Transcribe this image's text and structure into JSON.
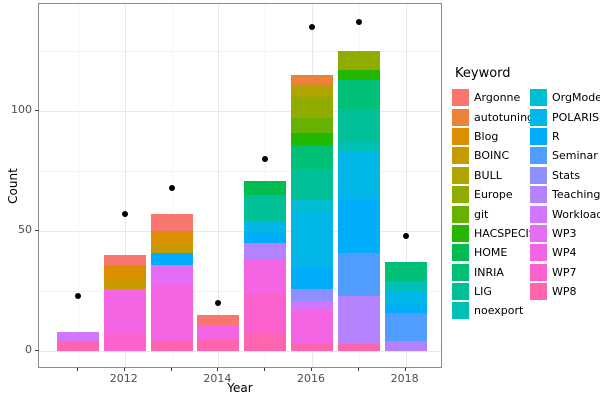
{
  "figure": {
    "y_axis_title": "Count",
    "x_axis_title": "Year",
    "legend_title": "Keyword"
  },
  "colors": {
    "panel_border": "#8c8c8c",
    "grid_major": "#e8e8e8",
    "grid_minor": "#f4f4f4",
    "tick": "#333333",
    "tick_label": "#4d4d4d",
    "point": "#000000"
  },
  "chart_data": {
    "type": "bar",
    "stacked": true,
    "title": "",
    "xlabel": "Year",
    "ylabel": "Count",
    "legend_title": "Keyword",
    "legend_position": "right",
    "grid": true,
    "x": [
      2011,
      2012,
      2013,
      2014,
      2015,
      2016,
      2017,
      2018
    ],
    "x_labeled_ticks": [
      "2012",
      "2014",
      "2016",
      "2018"
    ],
    "ylim": [
      0,
      145
    ],
    "y_major_ticks": [
      0,
      50,
      100
    ],
    "y_minor_ticks": [
      25,
      75,
      125
    ],
    "bar_totals": [
      8,
      40,
      57,
      15,
      71,
      115,
      125,
      37
    ],
    "series": [
      {
        "name": "Argonne",
        "color": "#F8766D",
        "values": [
          0,
          4,
          7,
          4,
          0,
          0,
          0,
          0
        ]
      },
      {
        "name": "autotuning",
        "color": "#EC8239",
        "values": [
          0,
          0,
          0,
          0,
          0,
          4,
          0,
          0
        ]
      },
      {
        "name": "Blog",
        "color": "#DB8E00",
        "values": [
          0,
          6,
          5,
          0,
          0,
          0,
          0,
          0
        ]
      },
      {
        "name": "BOINC",
        "color": "#C79A00",
        "values": [
          0,
          4,
          4,
          0,
          0,
          0,
          0,
          0
        ]
      },
      {
        "name": "BULL",
        "color": "#AFA400",
        "values": [
          0,
          0,
          0,
          0,
          0,
          5,
          0,
          0
        ]
      },
      {
        "name": "Europe",
        "color": "#90AC00",
        "values": [
          0,
          0,
          0,
          0,
          0,
          9,
          8,
          0
        ]
      },
      {
        "name": "git",
        "color": "#65B200",
        "values": [
          0,
          0,
          0,
          0,
          0,
          6,
          0,
          0
        ]
      },
      {
        "name": "HACSPECIS",
        "color": "#24B700",
        "values": [
          0,
          0,
          0,
          0,
          0,
          5,
          4,
          0
        ]
      },
      {
        "name": "HOME",
        "color": "#00BC51",
        "values": [
          0,
          0,
          0,
          0,
          6,
          0,
          0,
          0
        ]
      },
      {
        "name": "INRIA",
        "color": "#00BF76",
        "values": [
          0,
          0,
          0,
          0,
          0,
          10,
          12,
          8
        ]
      },
      {
        "name": "LIG",
        "color": "#00C097",
        "values": [
          0,
          0,
          0,
          0,
          11,
          13,
          14,
          0
        ]
      },
      {
        "name": "noexport",
        "color": "#00C0B6",
        "values": [
          0,
          0,
          0,
          0,
          0,
          0,
          4,
          4
        ]
      },
      {
        "name": "OrgMode",
        "color": "#00BDD1",
        "values": [
          0,
          0,
          0,
          0,
          0,
          5,
          0,
          0
        ]
      },
      {
        "name": "POLARIS",
        "color": "#00B7E8",
        "values": [
          0,
          0,
          0,
          0,
          5,
          23,
          20,
          6
        ]
      },
      {
        "name": "R",
        "color": "#00ACFC",
        "values": [
          0,
          0,
          5,
          0,
          4,
          9,
          22,
          3
        ]
      },
      {
        "name": "Seminar",
        "color": "#519DFF",
        "values": [
          0,
          0,
          0,
          0,
          0,
          0,
          18,
          12
        ]
      },
      {
        "name": "Stats",
        "color": "#8F8FFF",
        "values": [
          0,
          0,
          0,
          0,
          0,
          5,
          0,
          0
        ]
      },
      {
        "name": "Teaching",
        "color": "#B582FF",
        "values": [
          0,
          0,
          0,
          0,
          7,
          0,
          20,
          4
        ]
      },
      {
        "name": "Workload",
        "color": "#D077FF",
        "values": [
          4,
          0,
          0,
          0,
          0,
          4,
          0,
          0
        ]
      },
      {
        "name": "WP3",
        "color": "#E56DF5",
        "values": [
          0,
          0,
          8,
          0,
          0,
          0,
          0,
          0
        ]
      },
      {
        "name": "WP4",
        "color": "#F465E4",
        "values": [
          0,
          19,
          24,
          6,
          14,
          14,
          0,
          0
        ]
      },
      {
        "name": "WP7",
        "color": "#FD61CD",
        "values": [
          0,
          7,
          0,
          0,
          17,
          0,
          0,
          0
        ]
      },
      {
        "name": "WP8",
        "color": "#FF65AE",
        "values": [
          4,
          0,
          4,
          5,
          7,
          3,
          3,
          0
        ]
      }
    ],
    "overlay_points": {
      "type": "scatter",
      "name": "total-points",
      "color": "#000000",
      "values": [
        23,
        57,
        68,
        20,
        80,
        135,
        137,
        48
      ]
    }
  }
}
